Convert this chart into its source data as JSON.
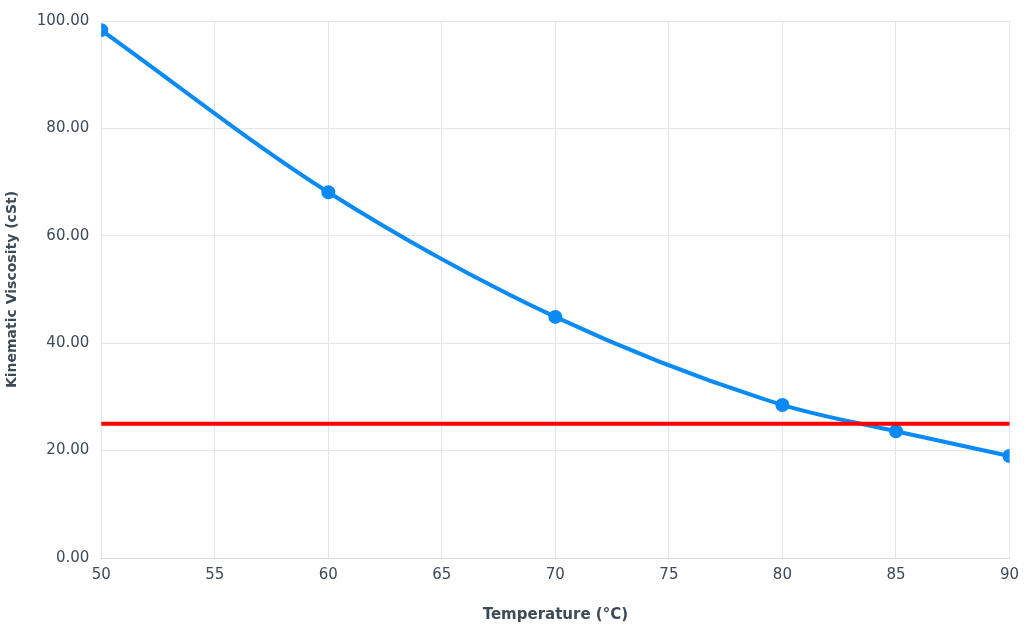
{
  "chart_data": {
    "type": "line",
    "xlabel": "Temperature (°C)",
    "ylabel": "Kinematic Viscosity (cSt)",
    "x": [
      50,
      60,
      70,
      80,
      85,
      90
    ],
    "series": [
      {
        "color": "#0a8af5",
        "values": [
          98.3,
          68.1,
          44.9,
          28.5,
          23.6,
          19.0
        ]
      }
    ],
    "xlim": [
      50,
      90
    ],
    "xticks": [
      50,
      55,
      60,
      65,
      70,
      75,
      80,
      85,
      90
    ],
    "ylim": [
      0,
      100
    ],
    "yticks": [
      {
        "value": 0,
        "label": "0.00"
      },
      {
        "value": 20,
        "label": "20.00"
      },
      {
        "value": 40,
        "label": "40.00"
      },
      {
        "value": 60,
        "label": "60.00"
      },
      {
        "value": 80,
        "label": "80.00"
      },
      {
        "value": 100,
        "label": "100.00"
      }
    ],
    "ref_lines": [
      {
        "axis": "y",
        "value": 25,
        "color": "#ff0000"
      }
    ],
    "grid": true,
    "marker": "circle",
    "line_style": "solid",
    "legend": false
  }
}
